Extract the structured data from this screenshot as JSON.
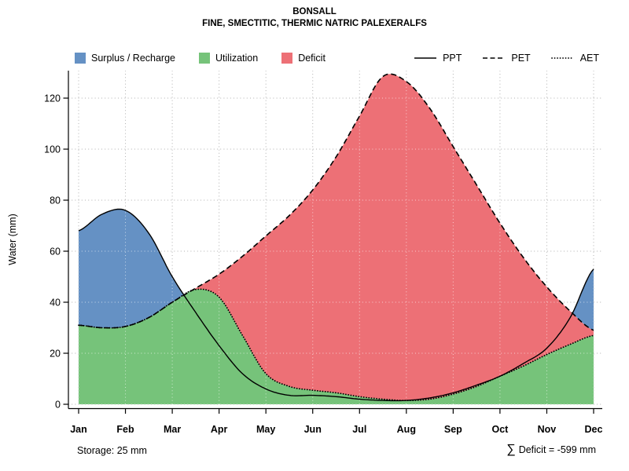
{
  "header": {
    "title": "BONSALL",
    "subtitle": "FINE, SMECTITIC, THERMIC NATRIC PALEXERALFS"
  },
  "legend": {
    "areas": [
      {
        "label": "Surplus / Recharge"
      },
      {
        "label": "Utilization"
      },
      {
        "label": "Deficit"
      }
    ],
    "lines": [
      {
        "label": "PPT",
        "style": "solid"
      },
      {
        "label": "PET",
        "style": "dashed"
      },
      {
        "label": "AET",
        "style": "dotted"
      }
    ]
  },
  "footer": {
    "storage": "Storage: 25 mm",
    "deficit_sigma": "∑",
    "deficit_text": "Deficit = -599 mm"
  },
  "chart_data": {
    "type": "area",
    "title": "BONSALL",
    "subtitle": "FINE, SMECTITIC, THERMIC NATRIC PALEXERALFS",
    "ylabel": "Water (mm)",
    "ylim": [
      0,
      132
    ],
    "yticks": [
      0,
      20,
      40,
      60,
      80,
      100,
      120
    ],
    "grid": true,
    "legend_position": "top",
    "x_months": [
      "Jan",
      "Feb",
      "Mar",
      "Apr",
      "May",
      "Jun",
      "Jul",
      "Aug",
      "Sep",
      "Oct",
      "Nov",
      "Dec"
    ],
    "x": [
      1,
      1.5,
      2,
      2.5,
      3,
      3.5,
      4,
      4.5,
      5,
      5.5,
      6,
      6.5,
      7,
      7.5,
      8,
      8.5,
      9,
      9.5,
      10,
      10.5,
      11,
      11.5,
      12
    ],
    "series": [
      {
        "name": "PPT",
        "style": "solid",
        "values": [
          68,
          74.5,
          76,
          67,
          50,
          36,
          23,
          12,
          6,
          3.5,
          3.5,
          3,
          2,
          1.5,
          1.5,
          2.5,
          4.5,
          7.5,
          11,
          16,
          22,
          34,
          53
        ]
      },
      {
        "name": "PET",
        "style": "dashed",
        "values": [
          31,
          30,
          30.5,
          34,
          40,
          45.5,
          51,
          58,
          66,
          74,
          84,
          97,
          113,
          128.5,
          126.5,
          116,
          101,
          86,
          71,
          57.5,
          46,
          36.5,
          29
        ]
      },
      {
        "name": "AET",
        "style": "dotted",
        "values": [
          31,
          30,
          30.5,
          34,
          40,
          45,
          42,
          27,
          12,
          7,
          5.5,
          4.5,
          3,
          2,
          1.5,
          2,
          4,
          7,
          11,
          15,
          19.5,
          23.5,
          27
        ]
      }
    ],
    "areas": [
      {
        "name": "Surplus / Recharge",
        "color": "#6591c4",
        "between": [
          "PET",
          "PPT"
        ],
        "where": "PPT>PET"
      },
      {
        "name": "Utilization",
        "color": "#76c37a",
        "between": [
          "zero",
          "AET"
        ]
      },
      {
        "name": "Deficit",
        "color": "#ed7076",
        "between": [
          "AET",
          "PET"
        ]
      }
    ],
    "annotations": {
      "storage_mm": 25,
      "sum_deficit_mm": -599
    },
    "colors": {
      "grid": "#b0b0b0",
      "line": "#000000"
    }
  }
}
